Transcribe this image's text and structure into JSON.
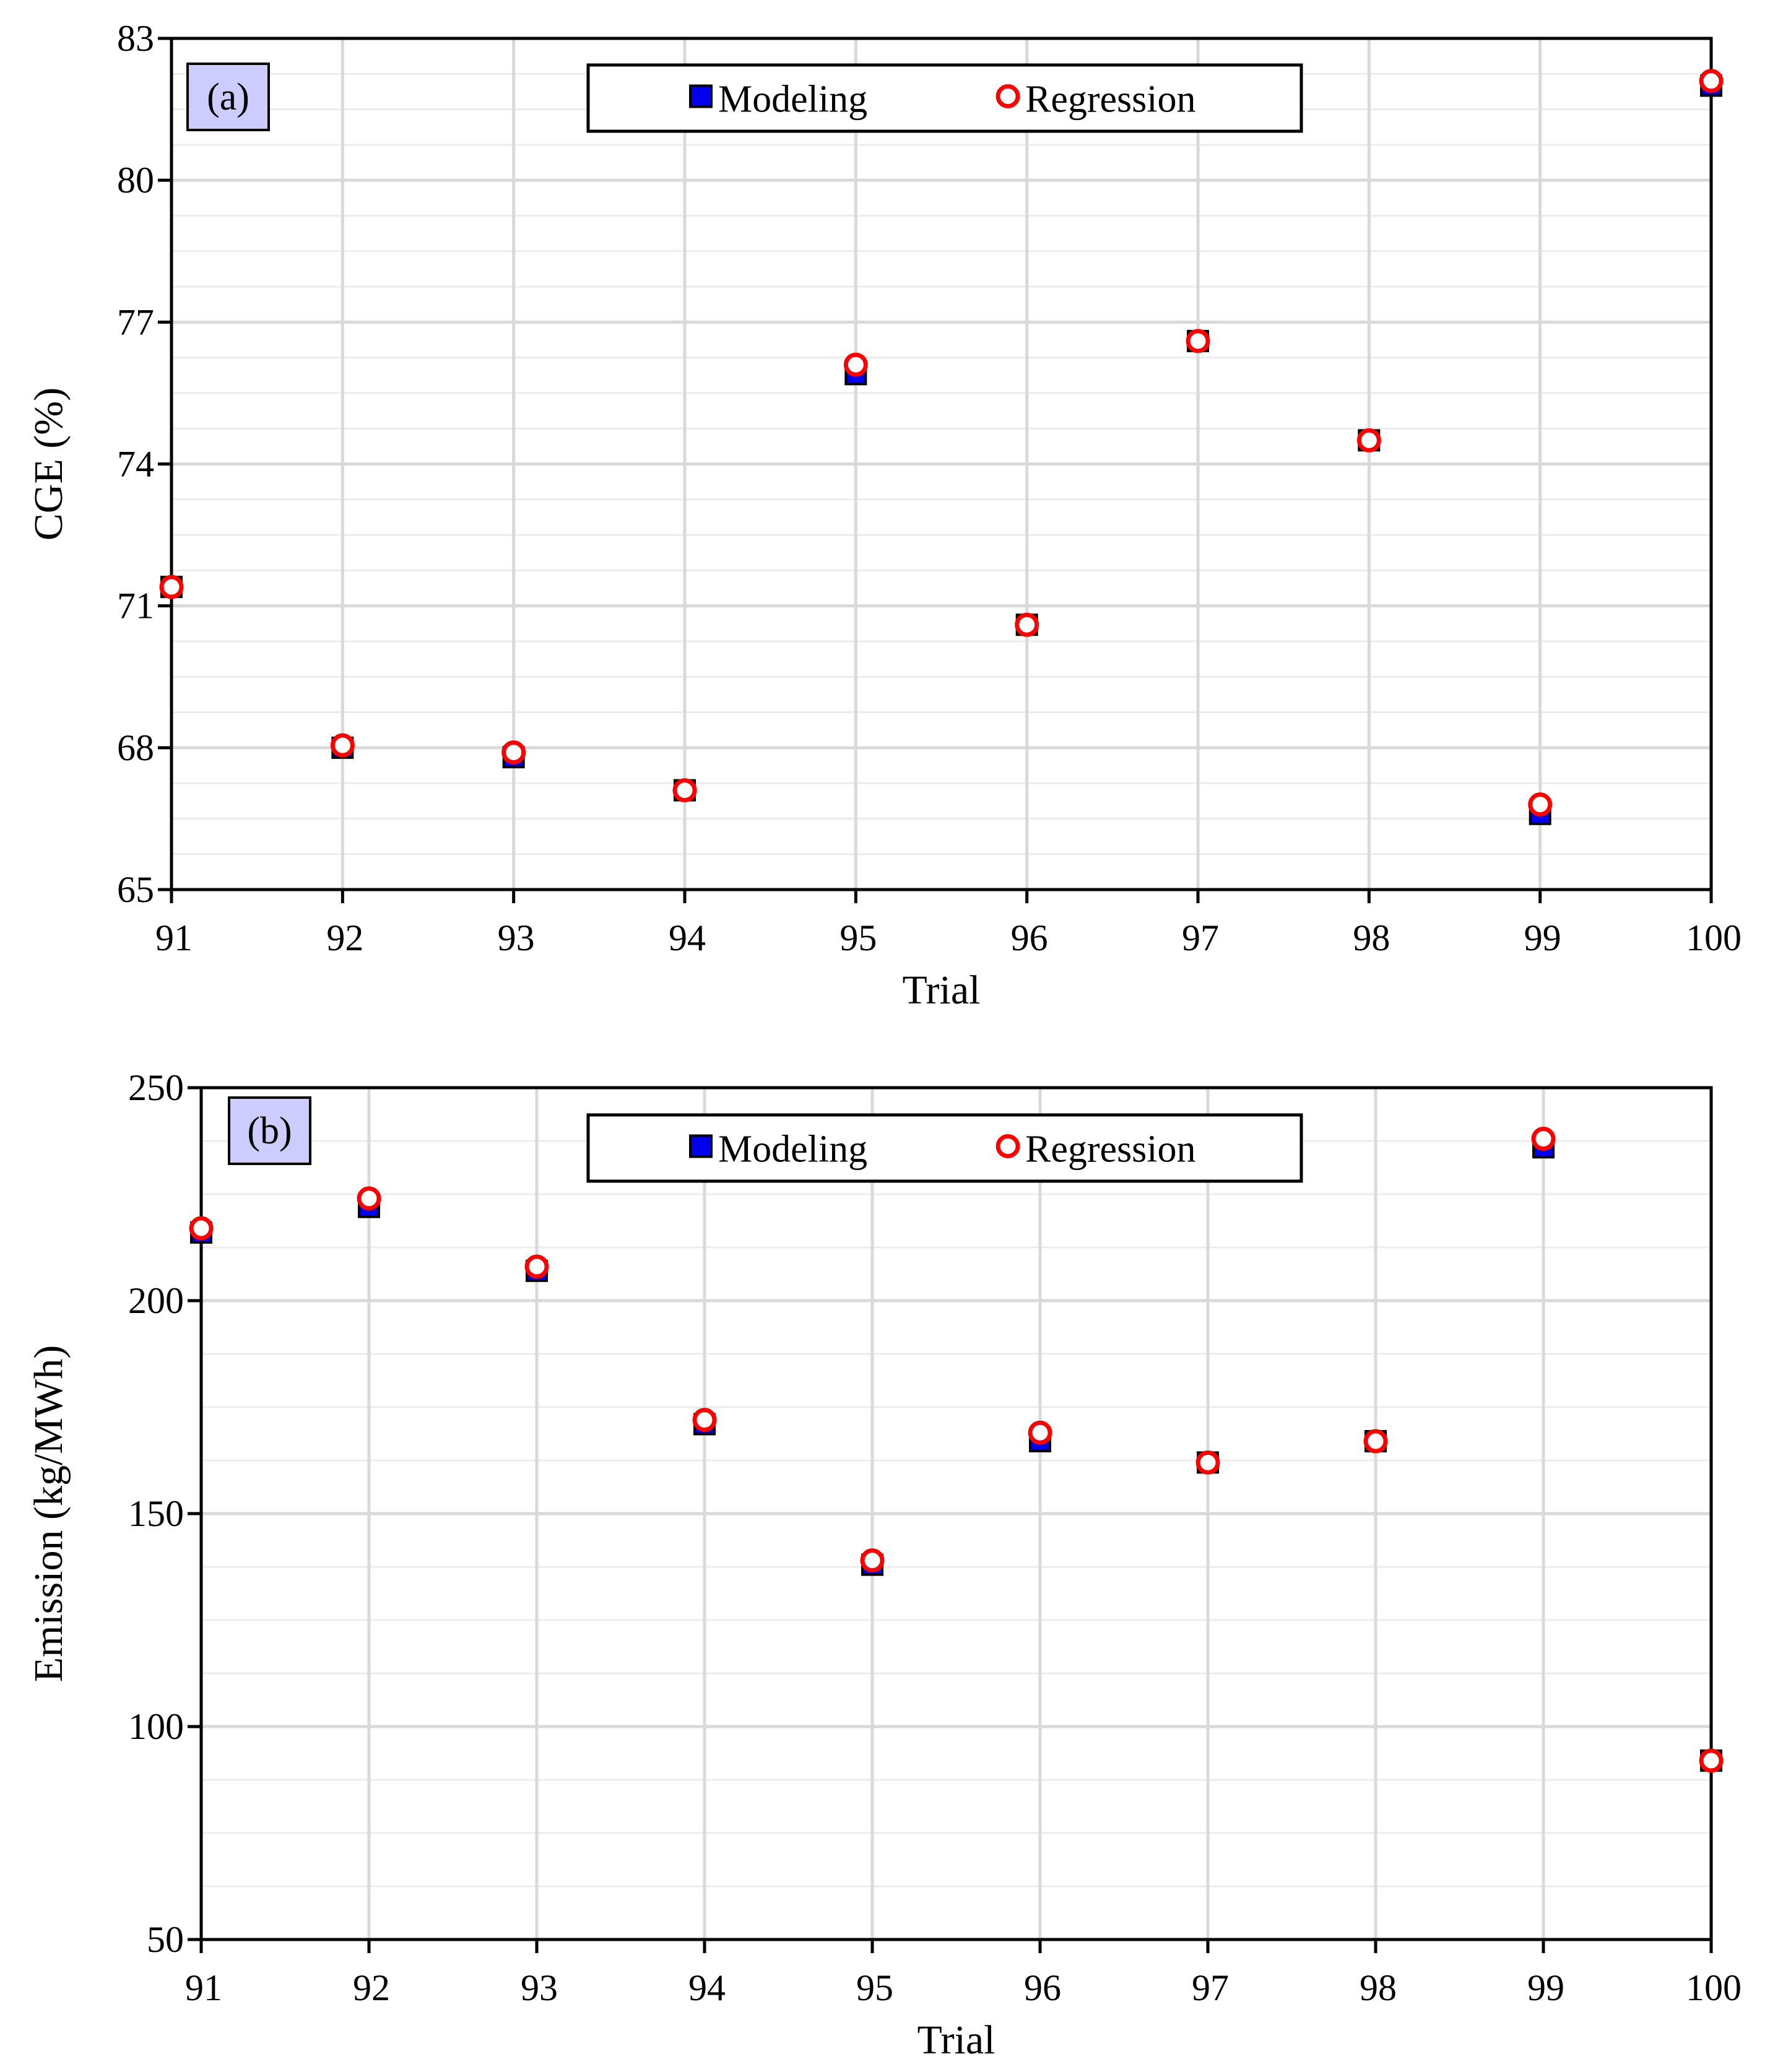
{
  "colors": {
    "modeling_fill": "#0000ee",
    "modeling_edge": "#000000",
    "regression_edge": "#ff0000",
    "regression_fill": "#ffffff",
    "panel_label_bg": "#ccccff",
    "grid": "#d9d9d9"
  },
  "chart_data": [
    {
      "type": "scatter",
      "panel_label": "(a)",
      "xlabel": "Trial",
      "ylabel": "CGE  (%)",
      "x": [
        91,
        92,
        93,
        94,
        95,
        96,
        97,
        98,
        99,
        100
      ],
      "xlim": [
        91,
        100
      ],
      "ylim": [
        65,
        83
      ],
      "yticks": [
        65,
        68,
        71,
        74,
        77,
        80,
        83
      ],
      "xticks": [
        91,
        92,
        93,
        94,
        95,
        96,
        97,
        98,
        99,
        100
      ],
      "grid": true,
      "legend_position": "top-center",
      "series": [
        {
          "name": "Modeling",
          "marker": "filled-square",
          "values": [
            71.4,
            68.0,
            67.8,
            67.1,
            75.9,
            70.6,
            76.6,
            74.5,
            66.6,
            82.0
          ]
        },
        {
          "name": "Regression",
          "marker": "open-circle",
          "values": [
            71.4,
            68.05,
            67.9,
            67.1,
            76.1,
            70.6,
            76.6,
            74.5,
            66.8,
            82.1
          ]
        }
      ]
    },
    {
      "type": "scatter",
      "panel_label": "(b)",
      "xlabel": "Trial",
      "ylabel": "Emission  (kg/MWh)",
      "x": [
        91,
        92,
        93,
        94,
        95,
        96,
        97,
        98,
        99,
        100
      ],
      "xlim": [
        91,
        100
      ],
      "ylim": [
        50,
        250
      ],
      "yticks": [
        50,
        100,
        150,
        200,
        250
      ],
      "xticks": [
        91,
        92,
        93,
        94,
        95,
        96,
        97,
        98,
        99,
        100
      ],
      "grid": true,
      "legend_position": "top-center",
      "series": [
        {
          "name": "Modeling",
          "marker": "filled-square",
          "values": [
            216,
            222,
            207,
            171,
            138,
            167,
            162,
            167,
            236,
            92
          ]
        },
        {
          "name": "Regression",
          "marker": "open-circle",
          "values": [
            217,
            224,
            208,
            172,
            139,
            169,
            162,
            167,
            238,
            92
          ]
        }
      ]
    }
  ]
}
